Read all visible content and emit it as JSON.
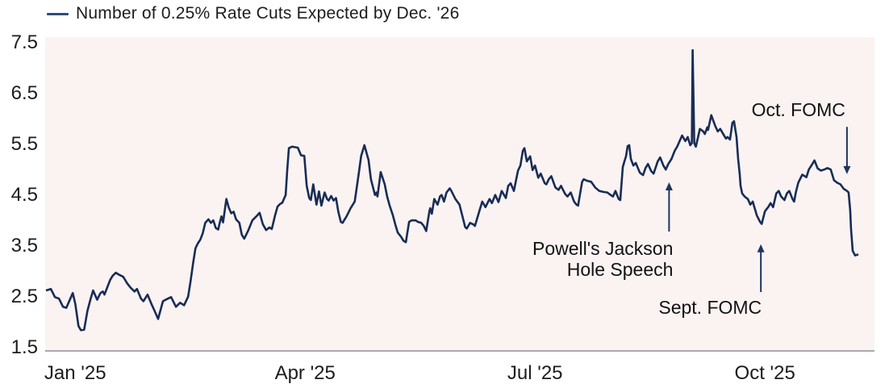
{
  "legend": {
    "label": "Number of 0.25% Rate Cuts Expected by Dec. '26"
  },
  "colors": {
    "line": "#182c55",
    "legend_dash": "#2b4d7e",
    "plot_bg": "#faf3f2",
    "axis": "#a9a9a9",
    "text": "#1c1c1c",
    "arrow": "#1e3560"
  },
  "chart_data": {
    "type": "line",
    "title": "Number of 0.25% Rate Cuts Expected by Dec. '26",
    "xlabel": "",
    "ylabel": "",
    "ylim": [
      1.5,
      7.5
    ],
    "grid": false,
    "legend_position": "top-left",
    "y_axis": {
      "ticks": [
        {
          "label": "7.5",
          "value": 7.5
        },
        {
          "label": "6.5",
          "value": 6.5
        },
        {
          "label": "5.5",
          "value": 5.5
        },
        {
          "label": "4.5",
          "value": 4.5
        },
        {
          "label": "3.5",
          "value": 3.5
        },
        {
          "label": "2.5",
          "value": 2.5
        },
        {
          "label": "1.5",
          "value": 1.5
        }
      ]
    },
    "x_axis": {
      "ticks": [
        {
          "label": "Jan '25",
          "t": 3.6
        },
        {
          "label": "Apr '25",
          "t": 31.9
        },
        {
          "label": "Jul '25",
          "t": 60.2
        },
        {
          "label": "Oct '25",
          "t": 88.5
        }
      ]
    },
    "series": [
      {
        "name": "Number of 0.25% Rate Cuts Expected by Dec. '26",
        "points": [
          [
            0,
            2.62
          ],
          [
            0.6,
            2.65
          ],
          [
            1.1,
            2.49
          ],
          [
            1.6,
            2.46
          ],
          [
            2.1,
            2.3
          ],
          [
            2.5,
            2.28
          ],
          [
            3,
            2.46
          ],
          [
            3.3,
            2.57
          ],
          [
            3.6,
            2.36
          ],
          [
            4,
            1.92
          ],
          [
            4.3,
            1.84
          ],
          [
            4.7,
            1.85
          ],
          [
            5.1,
            2.22
          ],
          [
            5.5,
            2.46
          ],
          [
            5.8,
            2.62
          ],
          [
            6.3,
            2.44
          ],
          [
            6.7,
            2.57
          ],
          [
            7,
            2.6
          ],
          [
            7.2,
            2.54
          ],
          [
            7.9,
            2.83
          ],
          [
            8.2,
            2.91
          ],
          [
            8.6,
            2.97
          ],
          [
            9,
            2.93
          ],
          [
            9.5,
            2.89
          ],
          [
            10,
            2.76
          ],
          [
            10.4,
            2.68
          ],
          [
            10.9,
            2.6
          ],
          [
            11.2,
            2.65
          ],
          [
            11.7,
            2.46
          ],
          [
            12,
            2.41
          ],
          [
            12.5,
            2.54
          ],
          [
            13,
            2.35
          ],
          [
            13.4,
            2.21
          ],
          [
            13.8,
            2.06
          ],
          [
            14.4,
            2.41
          ],
          [
            15,
            2.46
          ],
          [
            15.4,
            2.49
          ],
          [
            16,
            2.3
          ],
          [
            16.5,
            2.38
          ],
          [
            17,
            2.33
          ],
          [
            17.5,
            2.5
          ],
          [
            17.8,
            2.8
          ],
          [
            18.1,
            3.15
          ],
          [
            18.4,
            3.45
          ],
          [
            18.7,
            3.55
          ],
          [
            19,
            3.62
          ],
          [
            19.3,
            3.75
          ],
          [
            19.6,
            3.95
          ],
          [
            20,
            4.02
          ],
          [
            20.3,
            3.95
          ],
          [
            20.6,
            4
          ],
          [
            20.9,
            3.85
          ],
          [
            21.2,
            3.82
          ],
          [
            21.4,
            3.96
          ],
          [
            21.6,
            4.08
          ],
          [
            21.8,
            3.96
          ],
          [
            22.2,
            4.42
          ],
          [
            22.5,
            4.25
          ],
          [
            22.8,
            4.14
          ],
          [
            23.1,
            4.17
          ],
          [
            23.4,
            4.02
          ],
          [
            23.8,
            3.95
          ],
          [
            24.1,
            3.72
          ],
          [
            24.4,
            3.64
          ],
          [
            24.9,
            3.8
          ],
          [
            25.4,
            4
          ],
          [
            25.9,
            4.08
          ],
          [
            26.3,
            4.15
          ],
          [
            26.7,
            3.92
          ],
          [
            27.1,
            3.81
          ],
          [
            27.5,
            3.86
          ],
          [
            27.8,
            3.83
          ],
          [
            28.2,
            4.1
          ],
          [
            28.5,
            4.27
          ],
          [
            28.8,
            4.32
          ],
          [
            29.1,
            4.35
          ],
          [
            29.5,
            4.5
          ],
          [
            29.7,
            5
          ],
          [
            29.9,
            5.42
          ],
          [
            30.3,
            5.45
          ],
          [
            30.7,
            5.44
          ],
          [
            31,
            5.43
          ],
          [
            31.4,
            5.28
          ],
          [
            31.8,
            5.27
          ],
          [
            32.1,
            4.68
          ],
          [
            32.4,
            4.44
          ],
          [
            32.6,
            4.4
          ],
          [
            32.9,
            4.71
          ],
          [
            33.3,
            4.31
          ],
          [
            33.6,
            4.57
          ],
          [
            33.9,
            4.29
          ],
          [
            34.3,
            4.55
          ],
          [
            34.6,
            4.42
          ],
          [
            34.8,
            4.39
          ],
          [
            35.1,
            4.48
          ],
          [
            35.4,
            4.39
          ],
          [
            35.7,
            4.44
          ],
          [
            36,
            4.16
          ],
          [
            36.3,
            3.97
          ],
          [
            36.5,
            3.95
          ],
          [
            37,
            4.08
          ],
          [
            37.5,
            4.24
          ],
          [
            38,
            4.37
          ],
          [
            38.5,
            4.92
          ],
          [
            38.8,
            5.27
          ],
          [
            39.2,
            5.48
          ],
          [
            39.7,
            5.19
          ],
          [
            40,
            4.81
          ],
          [
            40.5,
            4.5
          ],
          [
            40.7,
            4.55
          ],
          [
            40.8,
            4.47
          ],
          [
            41.2,
            4.95
          ],
          [
            41.7,
            4.71
          ],
          [
            42,
            4.47
          ],
          [
            42.3,
            4.29
          ],
          [
            42.7,
            4.1
          ],
          [
            43,
            3.92
          ],
          [
            43.3,
            3.76
          ],
          [
            43.7,
            3.68
          ],
          [
            44,
            3.6
          ],
          [
            44.3,
            3.57
          ],
          [
            44.7,
            3.97
          ],
          [
            45,
            4
          ],
          [
            45.5,
            4
          ],
          [
            45.8,
            3.97
          ],
          [
            46.2,
            3.95
          ],
          [
            46.5,
            3.89
          ],
          [
            46.8,
            3.79
          ],
          [
            47.2,
            4.18
          ],
          [
            47.3,
            4.24
          ],
          [
            47.5,
            4.13
          ],
          [
            47.8,
            4.42
          ],
          [
            48.2,
            4.31
          ],
          [
            48.5,
            4.47
          ],
          [
            48.7,
            4.5
          ],
          [
            49,
            4.37
          ],
          [
            49.3,
            4.55
          ],
          [
            49.7,
            4.63
          ],
          [
            49.9,
            4.58
          ],
          [
            50.4,
            4.42
          ],
          [
            50.9,
            4.31
          ],
          [
            51.6,
            3.87
          ],
          [
            51.8,
            3.84
          ],
          [
            52.2,
            3.95
          ],
          [
            52.6,
            3.92
          ],
          [
            52.8,
            3.89
          ],
          [
            53.4,
            4.21
          ],
          [
            53.7,
            4.37
          ],
          [
            54.1,
            4.26
          ],
          [
            54.6,
            4.42
          ],
          [
            54.9,
            4.34
          ],
          [
            55.3,
            4.5
          ],
          [
            55.7,
            4.36
          ],
          [
            56.1,
            4.58
          ],
          [
            56.6,
            4.44
          ],
          [
            56.9,
            4.68
          ],
          [
            57.2,
            4.73
          ],
          [
            57.6,
            4.58
          ],
          [
            58.1,
            4.98
          ],
          [
            58.4,
            5.08
          ],
          [
            58.7,
            5.37
          ],
          [
            58.9,
            5.42
          ],
          [
            59.2,
            5.16
          ],
          [
            59.6,
            5.26
          ],
          [
            59.9,
            4.99
          ],
          [
            60.2,
            5.08
          ],
          [
            60.6,
            4.84
          ],
          [
            60.9,
            4.92
          ],
          [
            61.4,
            4.73
          ],
          [
            61.6,
            4.71
          ],
          [
            61.9,
            4.81
          ],
          [
            62.2,
            4.87
          ],
          [
            62.7,
            4.65
          ],
          [
            63.1,
            4.6
          ],
          [
            63.4,
            4.68
          ],
          [
            63.9,
            4.52
          ],
          [
            64.2,
            4.47
          ],
          [
            64.6,
            4.55
          ],
          [
            65,
            4.37
          ],
          [
            65.3,
            4.31
          ],
          [
            65.5,
            4.29
          ],
          [
            66,
            4.76
          ],
          [
            66.2,
            4.81
          ],
          [
            66.6,
            4.78
          ],
          [
            67.1,
            4.76
          ],
          [
            67.6,
            4.65
          ],
          [
            68.1,
            4.58
          ],
          [
            68.6,
            4.56
          ],
          [
            69.1,
            4.55
          ],
          [
            69.5,
            4.5
          ],
          [
            69.8,
            4.47
          ],
          [
            70.1,
            4.58
          ],
          [
            70.5,
            4.42
          ],
          [
            70.7,
            4.4
          ],
          [
            71,
            5.05
          ],
          [
            71.2,
            5.16
          ],
          [
            71.4,
            5.26
          ],
          [
            71.6,
            5.46
          ],
          [
            71.8,
            5.48
          ],
          [
            72,
            5.21
          ],
          [
            72.3,
            5.08
          ],
          [
            72.6,
            5.13
          ],
          [
            73.1,
            4.94
          ],
          [
            73.5,
            4.89
          ],
          [
            73.8,
            5.03
          ],
          [
            74.1,
            5.11
          ],
          [
            74.5,
            4.97
          ],
          [
            74.8,
            4.92
          ],
          [
            75.3,
            5.16
          ],
          [
            75.6,
            5.24
          ],
          [
            76,
            5.08
          ],
          [
            76.3,
            5
          ],
          [
            76.6,
            5.11
          ],
          [
            77,
            5.21
          ],
          [
            77.4,
            5.37
          ],
          [
            77.7,
            5.45
          ],
          [
            78.3,
            5.67
          ],
          [
            78.7,
            5.56
          ],
          [
            79,
            5.64
          ],
          [
            79.3,
            5.48
          ],
          [
            79.5,
            5.52
          ],
          [
            79.6,
            7.35
          ],
          [
            79.8,
            5.52
          ],
          [
            80,
            5.45
          ],
          [
            80.5,
            5.8
          ],
          [
            80.9,
            5.75
          ],
          [
            81.1,
            5.7
          ],
          [
            81.4,
            5.83
          ],
          [
            81.5,
            5.78
          ],
          [
            81.9,
            6.07
          ],
          [
            82.4,
            5.85
          ],
          [
            82.7,
            5.75
          ],
          [
            83,
            5.8
          ],
          [
            83.4,
            5.69
          ],
          [
            83.7,
            5.61
          ],
          [
            83.9,
            5.64
          ],
          [
            84.2,
            5.59
          ],
          [
            84.5,
            5.92
          ],
          [
            84.7,
            5.95
          ],
          [
            85,
            5.64
          ],
          [
            85.2,
            5.21
          ],
          [
            85.4,
            4.9
          ],
          [
            85.5,
            4.68
          ],
          [
            85.7,
            4.53
          ],
          [
            86,
            4.47
          ],
          [
            86.4,
            4.42
          ],
          [
            86.7,
            4.31
          ],
          [
            87,
            4.37
          ],
          [
            87.5,
            4.1
          ],
          [
            87.9,
            3.97
          ],
          [
            88.1,
            3.93
          ],
          [
            88.5,
            4.18
          ],
          [
            88.9,
            4.26
          ],
          [
            89.2,
            4.34
          ],
          [
            89.5,
            4.26
          ],
          [
            89.9,
            4.53
          ],
          [
            90.2,
            4.58
          ],
          [
            90.5,
            4.47
          ],
          [
            90.9,
            4.4
          ],
          [
            91.2,
            4.53
          ],
          [
            91.5,
            4.58
          ],
          [
            91.9,
            4.42
          ],
          [
            92.1,
            4.37
          ],
          [
            92.3,
            4.55
          ],
          [
            92.6,
            4.74
          ],
          [
            93.1,
            4.9
          ],
          [
            93.6,
            4.85
          ],
          [
            93.9,
            5
          ],
          [
            94.3,
            5.1
          ],
          [
            94.6,
            5.18
          ],
          [
            95,
            5.02
          ],
          [
            95.4,
            4.98
          ],
          [
            95.8,
            5
          ],
          [
            96.2,
            5.03
          ],
          [
            96.6,
            5
          ],
          [
            97,
            4.79
          ],
          [
            97.4,
            4.74
          ],
          [
            97.8,
            4.71
          ],
          [
            98.2,
            4.62
          ],
          [
            98.6,
            4.58
          ],
          [
            98.8,
            4.55
          ],
          [
            99,
            4.2
          ],
          [
            99.1,
            3.84
          ],
          [
            99.3,
            3.4
          ],
          [
            99.6,
            3.31
          ],
          [
            100,
            3.33
          ]
        ]
      }
    ],
    "annotations": [
      {
        "id": "jackson-hole",
        "lines": [
          "Powell's Jackson",
          "Hole Speech"
        ],
        "align": "right",
        "anchor_t": 77.2,
        "text_top_value": 3.65,
        "arrow": {
          "t": 76.7,
          "tail_value": 3.78,
          "tip_value": 4.75,
          "direction": "up"
        }
      },
      {
        "id": "sept-fomc",
        "lines": [
          "Sept. FOMC"
        ],
        "align": "right",
        "anchor_t": 88.1,
        "text_top_value": 2.5,
        "arrow": {
          "t": 88.0,
          "tail_value": 2.59,
          "tip_value": 3.53,
          "direction": "up"
        }
      },
      {
        "id": "oct-fomc",
        "lines": [
          "Oct. FOMC"
        ],
        "align": "right",
        "anchor_t": 98.4,
        "text_top_value": 6.38,
        "arrow": {
          "t": 98.6,
          "tail_value": 5.84,
          "tip_value": 4.91,
          "direction": "down"
        }
      }
    ]
  }
}
